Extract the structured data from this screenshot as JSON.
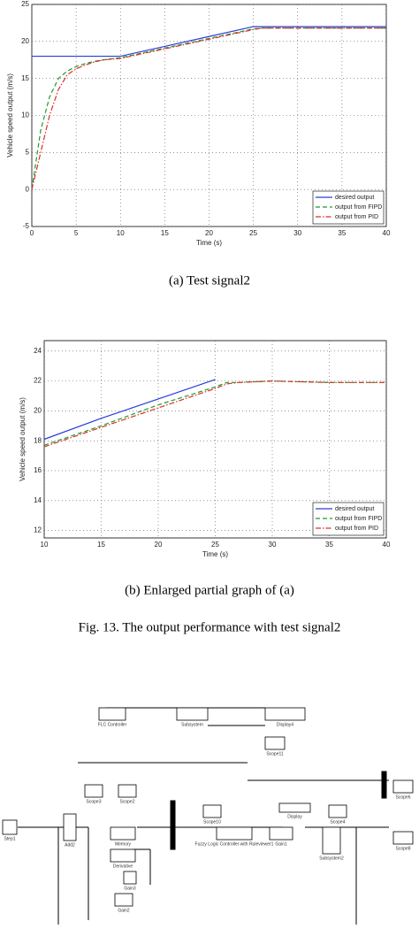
{
  "charts": [
    {
      "chart_data": {
        "type": "line",
        "ylabel": "Vehicle speed output (m/s)",
        "xlabel": "Time (s)",
        "x": [
          0,
          1,
          2,
          3,
          4,
          5,
          6,
          7,
          8,
          10,
          15,
          20,
          25,
          26,
          30,
          35,
          40
        ],
        "series": [
          {
            "name": "desired output",
            "color": "#2a3ddb",
            "dash": "solid",
            "values": [
              18,
              18,
              18,
              18,
              18,
              18,
              18,
              18,
              18,
              18,
              19.33,
              20.67,
              22,
              22,
              22,
              22,
              22
            ]
          },
          {
            "name": "output from FIPD",
            "color": "#1e9a2e",
            "dash": "dashed",
            "values": [
              0,
              8,
              12.5,
              15,
              16,
              16.6,
              17,
              17.3,
              17.5,
              17.8,
              19.1,
              20.4,
              21.7,
              21.8,
              21.8,
              21.8,
              21.8
            ]
          },
          {
            "name": "output from PID",
            "color": "#d9302a",
            "dash": "dashdot",
            "values": [
              0,
              5,
              10,
              13.5,
              15.5,
              16.3,
              16.8,
              17.2,
              17.5,
              17.7,
              19,
              20.3,
              21.6,
              21.8,
              21.8,
              21.8,
              21.8
            ]
          }
        ],
        "xlim": [
          0,
          40
        ],
        "xticks": [
          0,
          5,
          10,
          15,
          20,
          25,
          30,
          35,
          40
        ],
        "ylim": [
          -5,
          25
        ],
        "yticks": [
          -5,
          0,
          5,
          10,
          15,
          20,
          25
        ],
        "grid": true,
        "legend": "lower right"
      }
    },
    {
      "chart_data": {
        "type": "line",
        "ylabel": "Vehicle speed output (m/s)",
        "xlabel": "Time (s)",
        "x": [
          10,
          15,
          20,
          25,
          26,
          27,
          30,
          35,
          40
        ],
        "series": [
          {
            "name": "desired output",
            "color": "#2a3ddb",
            "dash": "solid",
            "values": [
              18.1,
              19.5,
              20.8,
              22.1,
              null,
              null,
              null,
              null,
              null
            ]
          },
          {
            "name": "output from FIPD",
            "color": "#1e9a2e",
            "dash": "dashed",
            "values": [
              17.7,
              19,
              20.4,
              21.6,
              21.9,
              21.9,
              22,
              21.9,
              21.9
            ]
          },
          {
            "name": "output from PID",
            "color": "#d9302a",
            "dash": "dashdot",
            "values": [
              17.6,
              18.9,
              20.2,
              21.5,
              21.8,
              21.9,
              22,
              21.9,
              21.9
            ]
          }
        ],
        "xlim": [
          10,
          40
        ],
        "xticks": [
          10,
          15,
          20,
          25,
          30,
          35,
          40
        ],
        "ylim": [
          11.5,
          24.7
        ],
        "yticks": [
          12,
          14,
          16,
          18,
          20,
          22,
          24
        ],
        "grid": true,
        "legend": "lower right"
      }
    }
  ],
  "captions": [
    "(a)  Test signal2",
    "(b) Enlarged partial graph of (a)",
    "Fig. 13.    The output performance with test signal2"
  ],
  "diagram": {
    "blocks": [
      {
        "label": "FLC Controller"
      },
      {
        "label": "Subsystem"
      },
      {
        "label": "Display4"
      },
      {
        "label": "Scope11"
      },
      {
        "label": "Scope3"
      },
      {
        "label": "Scope2"
      },
      {
        "label": "Step1"
      },
      {
        "label": "Add2"
      },
      {
        "label": "Memory"
      },
      {
        "label": "Derivative"
      },
      {
        "label": "Gain3"
      },
      {
        "label": "Gain2"
      },
      {
        "label": "Scope10"
      },
      {
        "label": "Fuzzy Logic Controller with Ruleviewer1"
      },
      {
        "label": "Gain1"
      },
      {
        "label": "Display"
      },
      {
        "label": "Subsystem2"
      },
      {
        "label": "Scope4"
      },
      {
        "label": "Scope6"
      },
      {
        "label": "Scope8"
      }
    ]
  }
}
